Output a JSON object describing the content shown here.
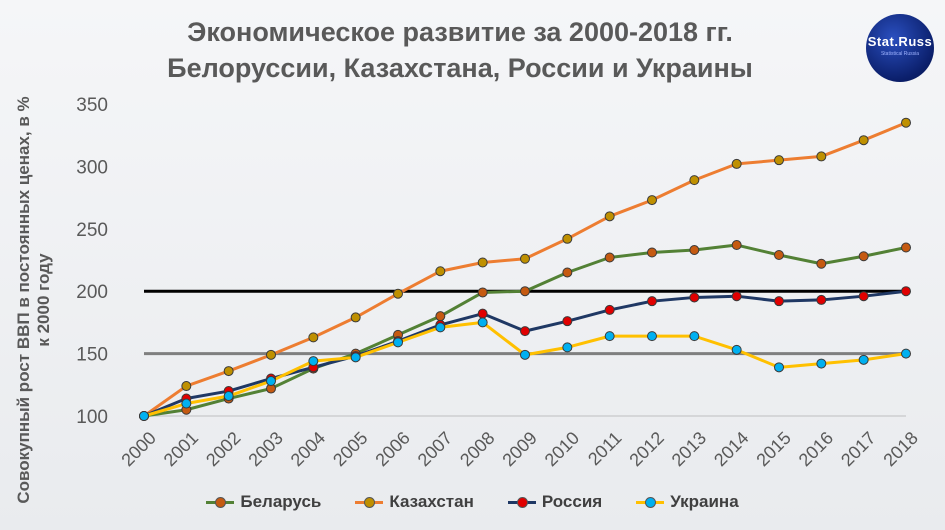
{
  "header": {
    "title_line1": "Экономическое развитие за 2000-2018 гг.",
    "title_line2": "Белоруссии, Казахстана, России и Украины"
  },
  "logo": {
    "brand": "Stat.Russ",
    "tagline": "Statistical    Russia"
  },
  "chart_data": {
    "type": "line",
    "ylabel": "Совокупный рост ВВП в постоянных ценах, в % к 2000 году",
    "ylim": [
      100,
      350
    ],
    "yticks": [
      100,
      150,
      200,
      250,
      300,
      350
    ],
    "x": [
      "2000",
      "2001",
      "2002",
      "2003",
      "2004",
      "2005",
      "2006",
      "2007",
      "2008",
      "2009",
      "2010",
      "2011",
      "2012",
      "2013",
      "2014",
      "2015",
      "2016",
      "2017",
      "2018"
    ],
    "reference_lines": [
      {
        "value": 200,
        "color": "#000000"
      },
      {
        "value": 150,
        "color": "#7f7f7f"
      }
    ],
    "series": [
      {
        "name": "Беларусь",
        "color": "#538135",
        "marker": "#c55a11",
        "values": [
          100,
          105,
          114,
          122,
          138,
          150,
          165,
          180,
          199,
          200,
          215,
          227,
          231,
          233,
          237,
          229,
          222,
          228,
          235
        ]
      },
      {
        "name": "Казахстан",
        "color": "#ed7d31",
        "marker": "#bf9000",
        "values": [
          100,
          124,
          136,
          149,
          163,
          179,
          198,
          216,
          223,
          226,
          242,
          260,
          273,
          289,
          302,
          305,
          308,
          321,
          335
        ]
      },
      {
        "name": "Россия",
        "color": "#1f3864",
        "marker": "#e00000",
        "values": [
          100,
          114,
          120,
          130,
          139,
          148,
          160,
          173,
          182,
          168,
          176,
          185,
          192,
          195,
          196,
          192,
          193,
          196,
          200
        ]
      },
      {
        "name": "Украина",
        "color": "#ffc000",
        "marker": "#00b0f0",
        "values": [
          100,
          110,
          116,
          128,
          144,
          147,
          159,
          171,
          175,
          149,
          155,
          164,
          164,
          164,
          153,
          139,
          142,
          145,
          150
        ]
      }
    ],
    "grid": false,
    "legend_position": "bottom"
  }
}
